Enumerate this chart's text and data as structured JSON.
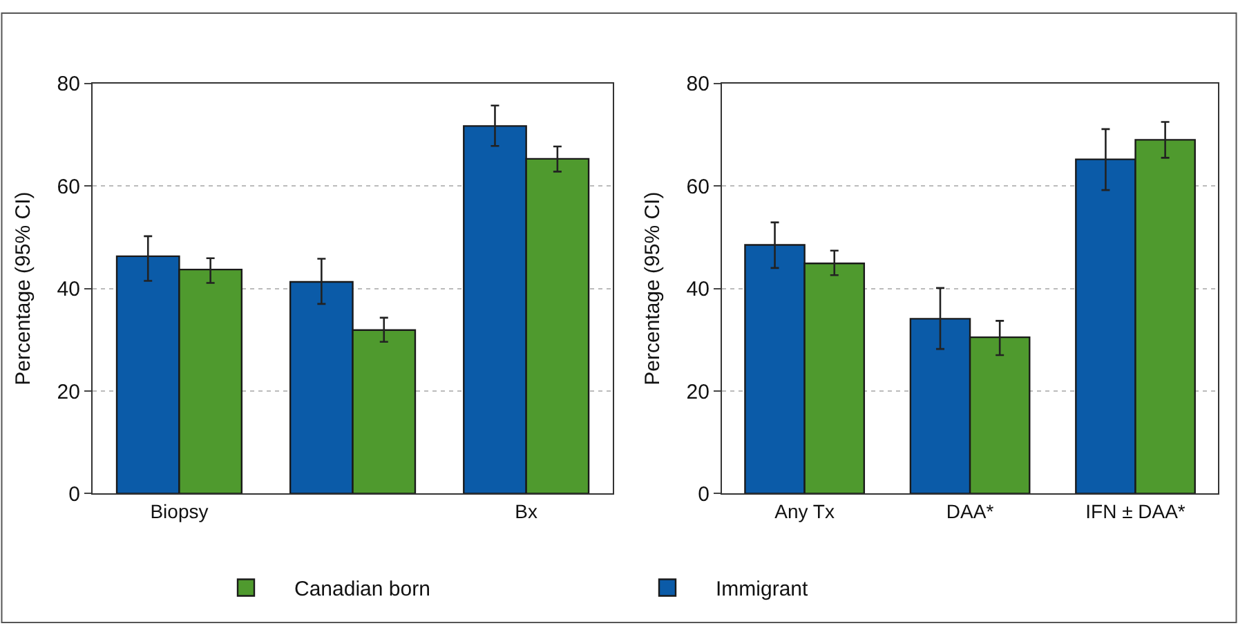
{
  "chart_data": [
    {
      "type": "bar",
      "categories": [
        "Biopsy",
        null,
        "Bx"
      ],
      "ylabel": "Percentage (95% CI)",
      "ylim": [
        0,
        80
      ],
      "yticks": [
        0,
        20,
        40,
        60,
        80
      ],
      "grid": "y",
      "legend": "bottom",
      "series": [
        {
          "name": "Immigrant",
          "color": "#0b5ba8",
          "values": [
            46.3,
            41.3,
            71.7
          ],
          "errors": [
            [
              41.5,
              50.2
            ],
            [
              37.0,
              45.8
            ],
            [
              67.8,
              75.7
            ]
          ]
        },
        {
          "name": "Canadian born",
          "color": "#4f9a2e",
          "values": [
            43.7,
            31.9,
            65.3
          ],
          "errors": [
            [
              41.1,
              45.9
            ],
            [
              29.6,
              34.3
            ],
            [
              62.8,
              67.7
            ]
          ]
        }
      ]
    },
    {
      "type": "bar",
      "categories": [
        "Any Tx",
        "DAA*",
        "IFN ± DAA*"
      ],
      "ylabel": "Percentage (95% CI)",
      "ylim": [
        0,
        80
      ],
      "yticks": [
        0,
        20,
        40,
        60,
        80
      ],
      "grid": "y",
      "series": [
        {
          "color": "#0b5ba8",
          "values": [
            48.5,
            34.1,
            65.2
          ],
          "errors": [
            [
              44.0,
              52.9
            ],
            [
              28.2,
              40.1
            ],
            [
              59.2,
              71.1
            ]
          ]
        },
        {
          "color": "#4f9a2e",
          "values": [
            44.9,
            30.5,
            69.0
          ],
          "errors": [
            [
              42.6,
              47.4
            ],
            [
              27.0,
              33.7
            ],
            [
              65.5,
              72.5
            ]
          ]
        }
      ]
    }
  ]
}
